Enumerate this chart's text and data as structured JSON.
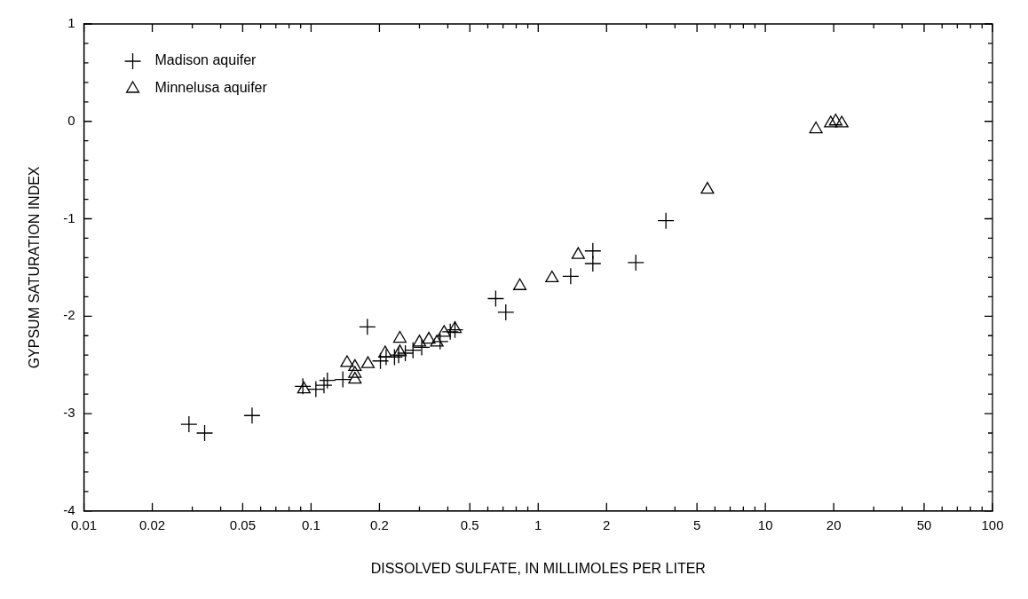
{
  "chart_data": {
    "type": "scatter",
    "xlabel": "DISSOLVED SULFATE, IN MILLIMOLES PER LITER",
    "ylabel": "GYPSUM SATURATION INDEX",
    "log": "x",
    "grid": false,
    "legend": "top left",
    "xlim": [
      0.01,
      100
    ],
    "ylim": [
      -4,
      1
    ],
    "xticks": [
      0.01,
      0.02,
      {
        "value": 0.03,
        "label": null
      },
      {
        "value": 0.04,
        "label": null
      },
      0.05,
      {
        "value": 0.06,
        "label": null
      },
      {
        "value": 0.07,
        "label": null
      },
      {
        "value": 0.08,
        "label": null
      },
      {
        "value": 0.09,
        "label": null
      },
      0.1,
      0.2,
      {
        "value": 0.3,
        "label": null
      },
      {
        "value": 0.4,
        "label": null
      },
      0.5,
      {
        "value": 0.6,
        "label": null
      },
      {
        "value": 0.7,
        "label": null
      },
      {
        "value": 0.8,
        "label": null
      },
      {
        "value": 0.9,
        "label": null
      },
      1,
      2,
      {
        "value": 3,
        "label": null
      },
      {
        "value": 4,
        "label": null
      },
      5,
      {
        "value": 6,
        "label": null
      },
      {
        "value": 7,
        "label": null
      },
      {
        "value": 8,
        "label": null
      },
      {
        "value": 9,
        "label": null
      },
      10,
      20,
      {
        "value": 30,
        "label": null
      },
      {
        "value": 40,
        "label": null
      },
      50,
      {
        "value": 60,
        "label": null
      },
      {
        "value": 70,
        "label": null
      },
      {
        "value": 80,
        "label": null
      },
      {
        "value": 90,
        "label": null
      },
      100
    ],
    "yticks": [
      -4,
      {
        "value": -3.8,
        "label": null
      },
      {
        "value": -3.6,
        "label": null
      },
      {
        "value": -3.4,
        "label": null
      },
      {
        "value": -3.2,
        "label": null
      },
      -3,
      {
        "value": -2.8,
        "label": null
      },
      {
        "value": -2.6,
        "label": null
      },
      {
        "value": -2.4,
        "label": null
      },
      {
        "value": -2.2,
        "label": null
      },
      -2,
      {
        "value": -1.8,
        "label": null
      },
      {
        "value": -1.6,
        "label": null
      },
      {
        "value": -1.4,
        "label": null
      },
      {
        "value": -1.2,
        "label": null
      },
      -1,
      {
        "value": -0.8,
        "label": null
      },
      {
        "value": -0.6,
        "label": null
      },
      {
        "value": -0.4,
        "label": null
      },
      {
        "value": -0.2,
        "label": null
      },
      0,
      {
        "value": 0.2,
        "label": null
      },
      {
        "value": 0.4,
        "label": null
      },
      {
        "value": 0.6,
        "label": null
      },
      {
        "value": 0.8,
        "label": null
      },
      1
    ],
    "series": [
      {
        "name": "Madison aquifer",
        "color": "#000000",
        "marker": "cross",
        "x": [
          0.029,
          0.034,
          0.055,
          0.092,
          0.105,
          0.114,
          0.118,
          0.138,
          0.177,
          0.202,
          0.214,
          0.233,
          0.243,
          0.26,
          0.281,
          0.307,
          0.37,
          0.41,
          0.43,
          0.65,
          0.72,
          1.39,
          1.74,
          1.74,
          2.69,
          3.65
        ],
        "values": [
          -3.11,
          -3.2,
          -3.02,
          -2.72,
          -2.75,
          -2.71,
          -2.66,
          -2.65,
          -2.11,
          -2.46,
          -2.42,
          -2.42,
          -2.4,
          -2.38,
          -2.35,
          -2.32,
          -2.26,
          -2.16,
          -2.14,
          -1.82,
          -1.96,
          -1.59,
          -1.33,
          -1.46,
          -1.45,
          -1.02
        ]
      },
      {
        "name": "Minnelusa aquifer",
        "color": "#000000",
        "marker": "triangle",
        "x": [
          0.093,
          0.144,
          0.156,
          0.156,
          0.156,
          0.178,
          0.212,
          0.246,
          0.246,
          0.3,
          0.33,
          0.358,
          0.385,
          0.43,
          0.83,
          1.15,
          1.5,
          5.56,
          16.7,
          19.4,
          20.4,
          21.7
        ],
        "values": [
          -2.75,
          -2.48,
          -2.52,
          -2.59,
          -2.65,
          -2.49,
          -2.38,
          -2.23,
          -2.37,
          -2.27,
          -2.24,
          -2.27,
          -2.17,
          -2.13,
          -1.69,
          -1.61,
          -1.37,
          -0.7,
          -0.08,
          -0.02,
          0,
          -0.02
        ]
      }
    ]
  }
}
